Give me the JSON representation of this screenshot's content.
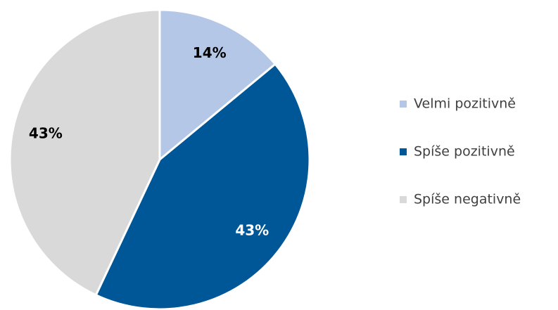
{
  "chart_data": {
    "type": "pie",
    "categories": [
      "Velmi pozitivně",
      "Spíše pozitivně",
      "Spíše negativně"
    ],
    "values": [
      14,
      43,
      43
    ],
    "value_labels": [
      "14%",
      "43%",
      "43%"
    ],
    "colors": [
      "#b4c7e7",
      "#005797",
      "#d9d9d9"
    ],
    "legend": "right"
  }
}
